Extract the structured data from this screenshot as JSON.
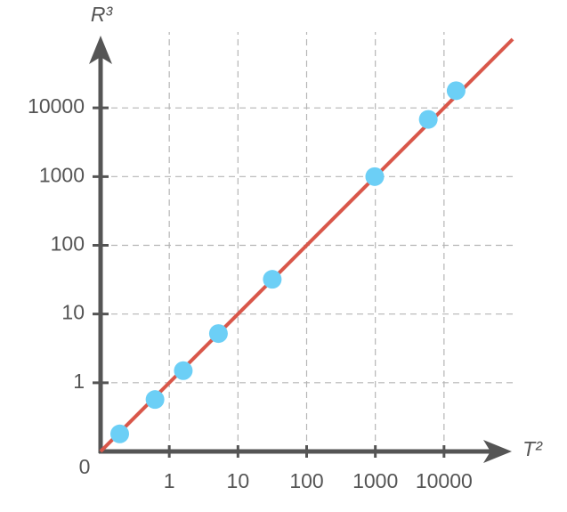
{
  "chart_data": {
    "type": "scatter",
    "xscale": "log",
    "yscale": "log",
    "grid": true,
    "x_label": "T²",
    "y_label": "R³",
    "origin_label": "0",
    "xlim": [
      0.1,
      100000
    ],
    "ylim": [
      0.1,
      100000
    ],
    "xticks": [
      1,
      10,
      100,
      1000,
      10000
    ],
    "yticks": [
      1,
      10,
      100,
      1000,
      10000
    ],
    "series": [
      {
        "type": "line",
        "color": "#d9574a",
        "x": [
          0.1,
          100000
        ],
        "values": [
          0.1,
          100000
        ]
      },
      {
        "type": "scatter",
        "color": "#6ccff6",
        "x": [
          0.19,
          0.62,
          1.6,
          5.2,
          31.6,
          980,
          5900,
          15000
        ],
        "values": [
          0.18,
          0.57,
          1.5,
          5.2,
          32,
          1000,
          6800,
          17800
        ]
      }
    ]
  }
}
